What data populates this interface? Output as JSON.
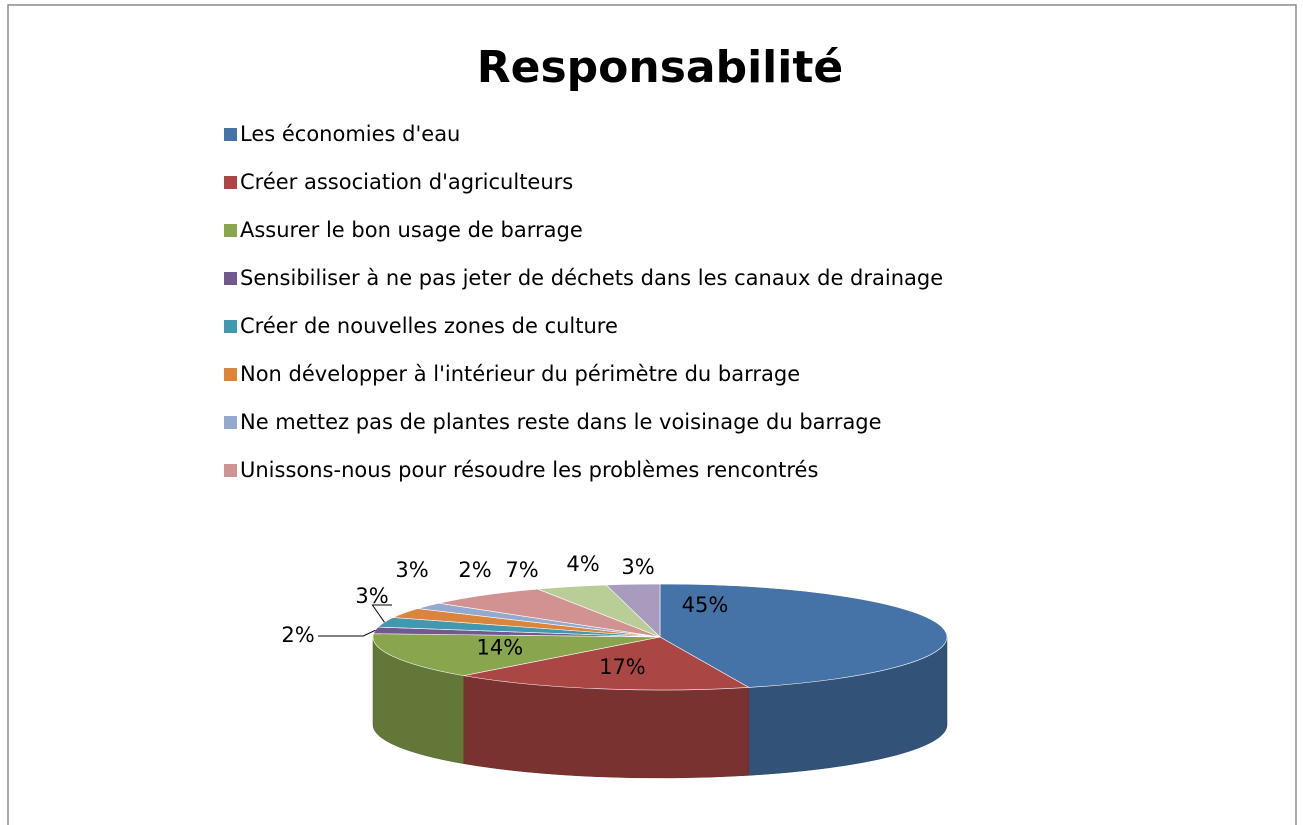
{
  "chart_data": {
    "type": "pie",
    "title": "Responsabilité",
    "categories": [
      "Les économies d'eau",
      "Créer association d'agriculteurs",
      "Assurer le bon usage de barrage",
      "Sensibiliser à ne pas jeter de déchets dans les canaux de drainage",
      "Créer de nouvelles zones de culture",
      "Non développer à l'intérieur du périmètre du barrage",
      "Ne mettez pas de plantes reste dans le voisinage du barrage",
      "Unissons-nous pour résoudre les problèmes rencontrés",
      null,
      null
    ],
    "values": [
      45,
      17,
      14,
      2,
      3,
      3,
      2,
      7,
      4,
      3
    ],
    "value_labels": [
      "45%",
      "17%",
      "14%",
      "2%",
      "3%",
      "3%",
      "2%",
      "7%",
      "4%",
      "3%"
    ],
    "colors": [
      "#4572a7",
      "#aa4643",
      "#89a54e",
      "#71588f",
      "#4198af",
      "#db843d",
      "#93a9cf",
      "#d19392",
      "#b9cd96",
      "#a99bbd"
    ],
    "legend": "top"
  }
}
